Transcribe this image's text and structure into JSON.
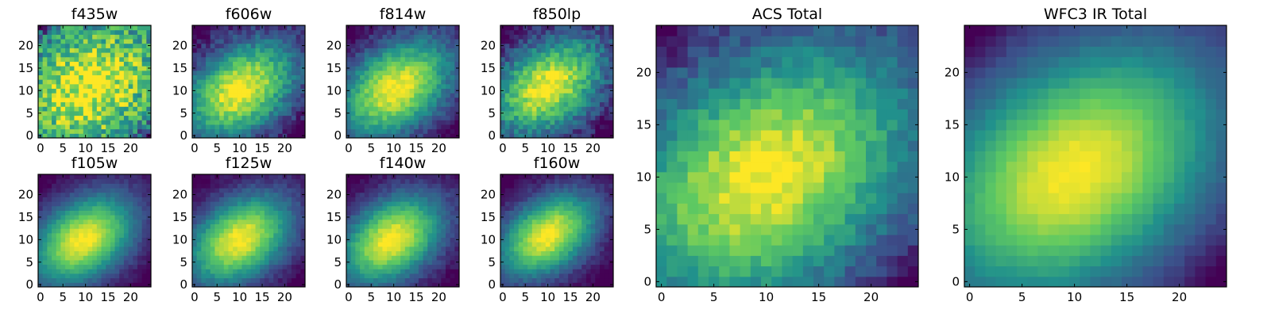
{
  "chart_data": [
    {
      "type": "heatmap",
      "title": "f435w",
      "xlim": [
        0,
        25
      ],
      "ylim": [
        0,
        25
      ],
      "x_ticks": [
        0,
        5,
        10,
        15,
        20
      ],
      "y_ticks": [
        0,
        5,
        10,
        15,
        20
      ],
      "grid": false,
      "values_model": {
        "grid_size": 25,
        "center": [
          11.5,
          11.5
        ],
        "sigma_major": 13,
        "sigma_minor": 10,
        "angle_deg": 35,
        "floor": 0.2,
        "noise": 0.24,
        "corner_dip": 0.3
      }
    },
    {
      "type": "heatmap",
      "title": "f606w",
      "xlim": [
        0,
        25
      ],
      "ylim": [
        0,
        25
      ],
      "x_ticks": [
        0,
        5,
        10,
        15,
        20
      ],
      "y_ticks": [
        0,
        5,
        10,
        15,
        20
      ],
      "grid": false,
      "values_model": {
        "grid_size": 25,
        "center": [
          10.5,
          10.5
        ],
        "sigma_major": 10,
        "sigma_minor": 6.5,
        "angle_deg": 35,
        "floor": 0.0,
        "noise": 0.1,
        "corner_dip": 0.2
      }
    },
    {
      "type": "heatmap",
      "title": "f814w",
      "xlim": [
        0,
        25
      ],
      "ylim": [
        0,
        25
      ],
      "x_ticks": [
        0,
        5,
        10,
        15,
        20
      ],
      "y_ticks": [
        0,
        5,
        10,
        15,
        20
      ],
      "grid": false,
      "values_model": {
        "grid_size": 25,
        "center": [
          11.0,
          11.0
        ],
        "sigma_major": 10,
        "sigma_minor": 6.5,
        "angle_deg": 35,
        "floor": 0.0,
        "noise": 0.08,
        "corner_dip": 0.2
      }
    },
    {
      "type": "heatmap",
      "title": "f850lp",
      "xlim": [
        0,
        25
      ],
      "ylim": [
        0,
        25
      ],
      "x_ticks": [
        0,
        5,
        10,
        15,
        20
      ],
      "y_ticks": [
        0,
        5,
        10,
        15,
        20
      ],
      "grid": false,
      "values_model": {
        "grid_size": 25,
        "center": [
          10.5,
          11.5
        ],
        "sigma_major": 10,
        "sigma_minor": 6.5,
        "angle_deg": 35,
        "floor": 0.0,
        "noise": 0.12,
        "corner_dip": 0.25
      }
    },
    {
      "type": "heatmap",
      "title": "f105w",
      "xlim": [
        0,
        25
      ],
      "ylim": [
        0,
        25
      ],
      "x_ticks": [
        0,
        5,
        10,
        15,
        20
      ],
      "y_ticks": [
        0,
        5,
        10,
        15,
        20
      ],
      "grid": false,
      "values_model": {
        "grid_size": 25,
        "center": [
          10.0,
          10.5
        ],
        "sigma_major": 9,
        "sigma_minor": 6,
        "angle_deg": 35,
        "floor": 0.0,
        "noise": 0.04,
        "corner_dip": 0.15
      }
    },
    {
      "type": "heatmap",
      "title": "f125w",
      "xlim": [
        0,
        25
      ],
      "ylim": [
        0,
        25
      ],
      "x_ticks": [
        0,
        5,
        10,
        15,
        20
      ],
      "y_ticks": [
        0,
        5,
        10,
        15,
        20
      ],
      "grid": false,
      "values_model": {
        "grid_size": 25,
        "center": [
          10.5,
          10.5
        ],
        "sigma_major": 9,
        "sigma_minor": 6,
        "angle_deg": 35,
        "floor": 0.0,
        "noise": 0.05,
        "corner_dip": 0.15
      }
    },
    {
      "type": "heatmap",
      "title": "f140w",
      "xlim": [
        0,
        25
      ],
      "ylim": [
        0,
        25
      ],
      "x_ticks": [
        0,
        5,
        10,
        15,
        20
      ],
      "y_ticks": [
        0,
        5,
        10,
        15,
        20
      ],
      "grid": false,
      "values_model": {
        "grid_size": 25,
        "center": [
          10.0,
          10.5
        ],
        "sigma_major": 9,
        "sigma_minor": 6,
        "angle_deg": 35,
        "floor": 0.0,
        "noise": 0.05,
        "corner_dip": 0.15
      }
    },
    {
      "type": "heatmap",
      "title": "f160w",
      "xlim": [
        0,
        25
      ],
      "ylim": [
        0,
        25
      ],
      "x_ticks": [
        0,
        5,
        10,
        15,
        20
      ],
      "y_ticks": [
        0,
        5,
        10,
        15,
        20
      ],
      "grid": false,
      "values_model": {
        "grid_size": 25,
        "center": [
          10.5,
          11.5
        ],
        "sigma_major": 8.5,
        "sigma_minor": 5.5,
        "angle_deg": 35,
        "floor": 0.0,
        "noise": 0.05,
        "corner_dip": 0.2
      }
    },
    {
      "type": "heatmap",
      "title": "ACS Total",
      "xlim": [
        0,
        25
      ],
      "ylim": [
        0,
        25
      ],
      "x_ticks": [
        0,
        5,
        10,
        15,
        20
      ],
      "y_ticks": [
        0,
        5,
        10,
        15,
        20
      ],
      "grid": false,
      "values_model": {
        "grid_size": 25,
        "center": [
          10.5,
          10.5
        ],
        "sigma_major": 11,
        "sigma_minor": 7.5,
        "angle_deg": 35,
        "floor": 0.05,
        "noise": 0.08,
        "corner_dip": 0.25
      }
    },
    {
      "type": "heatmap",
      "title": "WFC3 IR Total",
      "xlim": [
        0,
        25
      ],
      "ylim": [
        0,
        25
      ],
      "x_ticks": [
        0,
        5,
        10,
        15,
        20
      ],
      "y_ticks": [
        0,
        5,
        10,
        15,
        20
      ],
      "grid": false,
      "values_model": {
        "grid_size": 25,
        "center": [
          10.5,
          11.0
        ],
        "sigma_major": 11,
        "sigma_minor": 7.5,
        "angle_deg": 35,
        "floor": 0.0,
        "noise": 0.02,
        "corner_dip": 0.2
      }
    }
  ],
  "colormap": [
    "#440154",
    "#3b528b",
    "#21918c",
    "#5ec962",
    "#fde725"
  ]
}
